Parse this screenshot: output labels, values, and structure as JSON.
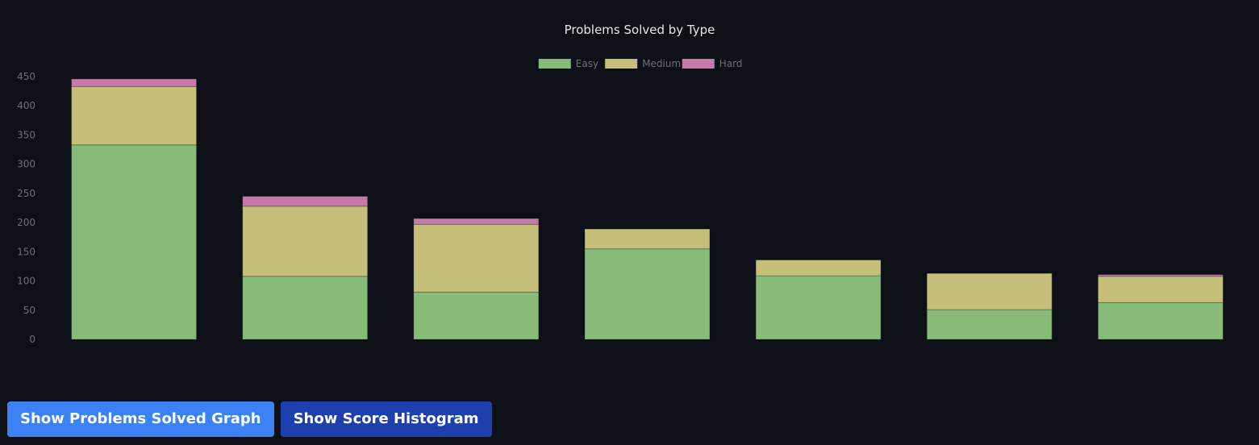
{
  "chart_data": {
    "type": "bar",
    "stacked": true,
    "title": "Problems Solved by Type",
    "categories": [
      "",
      "",
      "",
      "",
      "",
      "",
      ""
    ],
    "series": [
      {
        "name": "Easy",
        "color": "#86bc78",
        "values": [
          333,
          108,
          81,
          155,
          109,
          51,
          63
        ]
      },
      {
        "name": "Medium",
        "color": "#c5bf7a",
        "values": [
          100,
          120,
          116,
          34,
          27,
          62,
          45
        ]
      },
      {
        "name": "Hard",
        "color": "#c57aab",
        "values": [
          13,
          17,
          10,
          0,
          0,
          0,
          3
        ]
      }
    ],
    "ylim": [
      0,
      450
    ],
    "yticks": [
      0,
      50,
      100,
      150,
      200,
      250,
      300,
      350,
      400,
      450
    ],
    "grid": false,
    "legend": "top-center"
  },
  "buttons": {
    "problems_solved": "Show Problems Solved Graph",
    "score_histogram": "Show Score Histogram"
  }
}
